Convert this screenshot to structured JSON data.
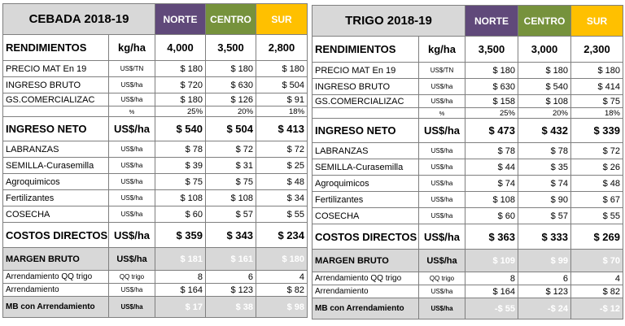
{
  "regions": {
    "norte": "NORTE",
    "centro": "CENTRO",
    "sur": "SUR"
  },
  "tables": [
    {
      "title": "CEBADA 2018-19",
      "rows": {
        "rendimientos": {
          "label": "RENDIMIENTOS",
          "unit": "kg/ha",
          "v": [
            "4,000",
            "3,500",
            "2,800"
          ]
        },
        "precio": {
          "label": "PRECIO  MAT En 19",
          "unit": "US$/TN",
          "v": [
            "$ 180",
            "$ 180",
            "$ 180"
          ]
        },
        "ingreso_bruto": {
          "label": "INGRESO BRUTO",
          "unit": "US$/ha",
          "v": [
            "$ 720",
            "$ 630",
            "$ 504"
          ]
        },
        "gs_comercializac": {
          "label": "GS.COMERCIALIZAC",
          "unit": "US$/ha",
          "v": [
            "$ 180",
            "$ 126",
            "$ 91"
          ]
        },
        "pct": {
          "label": "",
          "unit": "%",
          "v": [
            "25%",
            "20%",
            "18%"
          ]
        },
        "ingreso_neto": {
          "label": "INGRESO NETO",
          "unit": "US$/ha",
          "v": [
            "$ 540",
            "$ 504",
            "$ 413"
          ]
        },
        "labranzas": {
          "label": "LABRANZAS",
          "unit": "US$/ha",
          "v": [
            "$ 78",
            "$ 72",
            "$ 72"
          ]
        },
        "semilla": {
          "label": "SEMILLA-Curasemilla",
          "unit": "US$/ha",
          "v": [
            "$ 39",
            "$ 31",
            "$ 25"
          ]
        },
        "agroquimicos": {
          "label": "Agroquimicos",
          "unit": "US$/ha",
          "v": [
            "$ 75",
            "$ 75",
            "$ 48"
          ]
        },
        "fertilizantes": {
          "label": "Fertilizantes",
          "unit": "US$/ha",
          "v": [
            "$ 108",
            "$ 108",
            "$ 34"
          ]
        },
        "cosecha": {
          "label": "COSECHA",
          "unit": "US$/ha",
          "v": [
            "$ 60",
            "$ 57",
            "$ 55"
          ]
        },
        "costos_directos": {
          "label": "COSTOS DIRECTOS",
          "unit": "US$/ha",
          "v": [
            "$ 359",
            "$ 343",
            "$ 234"
          ]
        },
        "margen_bruto": {
          "label": "MARGEN BRUTO",
          "unit": "US$/ha",
          "v": [
            "$ 181",
            "$ 161",
            "$ 180"
          ]
        },
        "arrendamiento_qq": {
          "label": "Arrendamiento QQ trigo",
          "unit": "QQ trigo",
          "v": [
            "8",
            "6",
            "4"
          ]
        },
        "arrendamiento": {
          "label": "Arrendamiento",
          "unit": "US$/ha",
          "v": [
            "$ 164",
            "$ 123",
            "$ 82"
          ]
        },
        "mb_arrendamiento": {
          "label": "MB con Arrendamiento",
          "unit": "US$/ha",
          "v": [
            "$ 17",
            "$ 38",
            "$ 98"
          ]
        }
      }
    },
    {
      "title": "TRIGO 2018-19",
      "rows": {
        "rendimientos": {
          "label": "RENDIMIENTOS",
          "unit": "kg/ha",
          "v": [
            "3,500",
            "3,000",
            "2,300"
          ]
        },
        "precio": {
          "label": "PRECIO  MAT En 19",
          "unit": "US$/TN",
          "v": [
            "$ 180",
            "$ 180",
            "$ 180"
          ]
        },
        "ingreso_bruto": {
          "label": "INGRESO BRUTO",
          "unit": "US$/ha",
          "v": [
            "$ 630",
            "$ 540",
            "$ 414"
          ]
        },
        "gs_comercializac": {
          "label": "GS.COMERCIALIZAC",
          "unit": "US$/ha",
          "v": [
            "$ 158",
            "$ 108",
            "$ 75"
          ]
        },
        "pct": {
          "label": "",
          "unit": "%",
          "v": [
            "25%",
            "20%",
            "18%"
          ]
        },
        "ingreso_neto": {
          "label": "INGRESO NETO",
          "unit": "US$/ha",
          "v": [
            "$ 473",
            "$ 432",
            "$ 339"
          ]
        },
        "labranzas": {
          "label": "LABRANZAS",
          "unit": "US$/ha",
          "v": [
            "$ 78",
            "$ 78",
            "$ 72"
          ]
        },
        "semilla": {
          "label": "SEMILLA-Curasemilla",
          "unit": "US$/ha",
          "v": [
            "$ 44",
            "$ 35",
            "$ 26"
          ]
        },
        "agroquimicos": {
          "label": "Agroquimicos",
          "unit": "US$/ha",
          "v": [
            "$ 74",
            "$ 74",
            "$ 48"
          ]
        },
        "fertilizantes": {
          "label": "Fertilizantes",
          "unit": "US$/ha",
          "v": [
            "$ 108",
            "$ 90",
            "$ 67"
          ]
        },
        "cosecha": {
          "label": "COSECHA",
          "unit": "US$/ha",
          "v": [
            "$ 60",
            "$ 57",
            "$ 55"
          ]
        },
        "costos_directos": {
          "label": "COSTOS DIRECTOS",
          "unit": "US$/ha",
          "v": [
            "$ 363",
            "$ 333",
            "$ 269"
          ]
        },
        "margen_bruto": {
          "label": "MARGEN BRUTO",
          "unit": "US$/ha",
          "v": [
            "$ 109",
            "$ 99",
            "$ 70"
          ]
        },
        "arrendamiento_qq": {
          "label": "Arrendamiento QQ trigo",
          "unit": "QQ trigo",
          "v": [
            "8",
            "6",
            "4"
          ]
        },
        "arrendamiento": {
          "label": "Arrendamiento",
          "unit": "US$/ha",
          "v": [
            "$ 164",
            "$ 123",
            "$ 82"
          ]
        },
        "mb_arrendamiento": {
          "label": "MB con Arrendamiento",
          "unit": "US$/ha",
          "v": [
            "-$ 55",
            "-$ 24",
            "-$ 12"
          ]
        }
      }
    }
  ],
  "colors": {
    "norte": "#60497a",
    "centro": "#76923c",
    "sur": "#ffc000",
    "grey": "#d8d8d8"
  }
}
